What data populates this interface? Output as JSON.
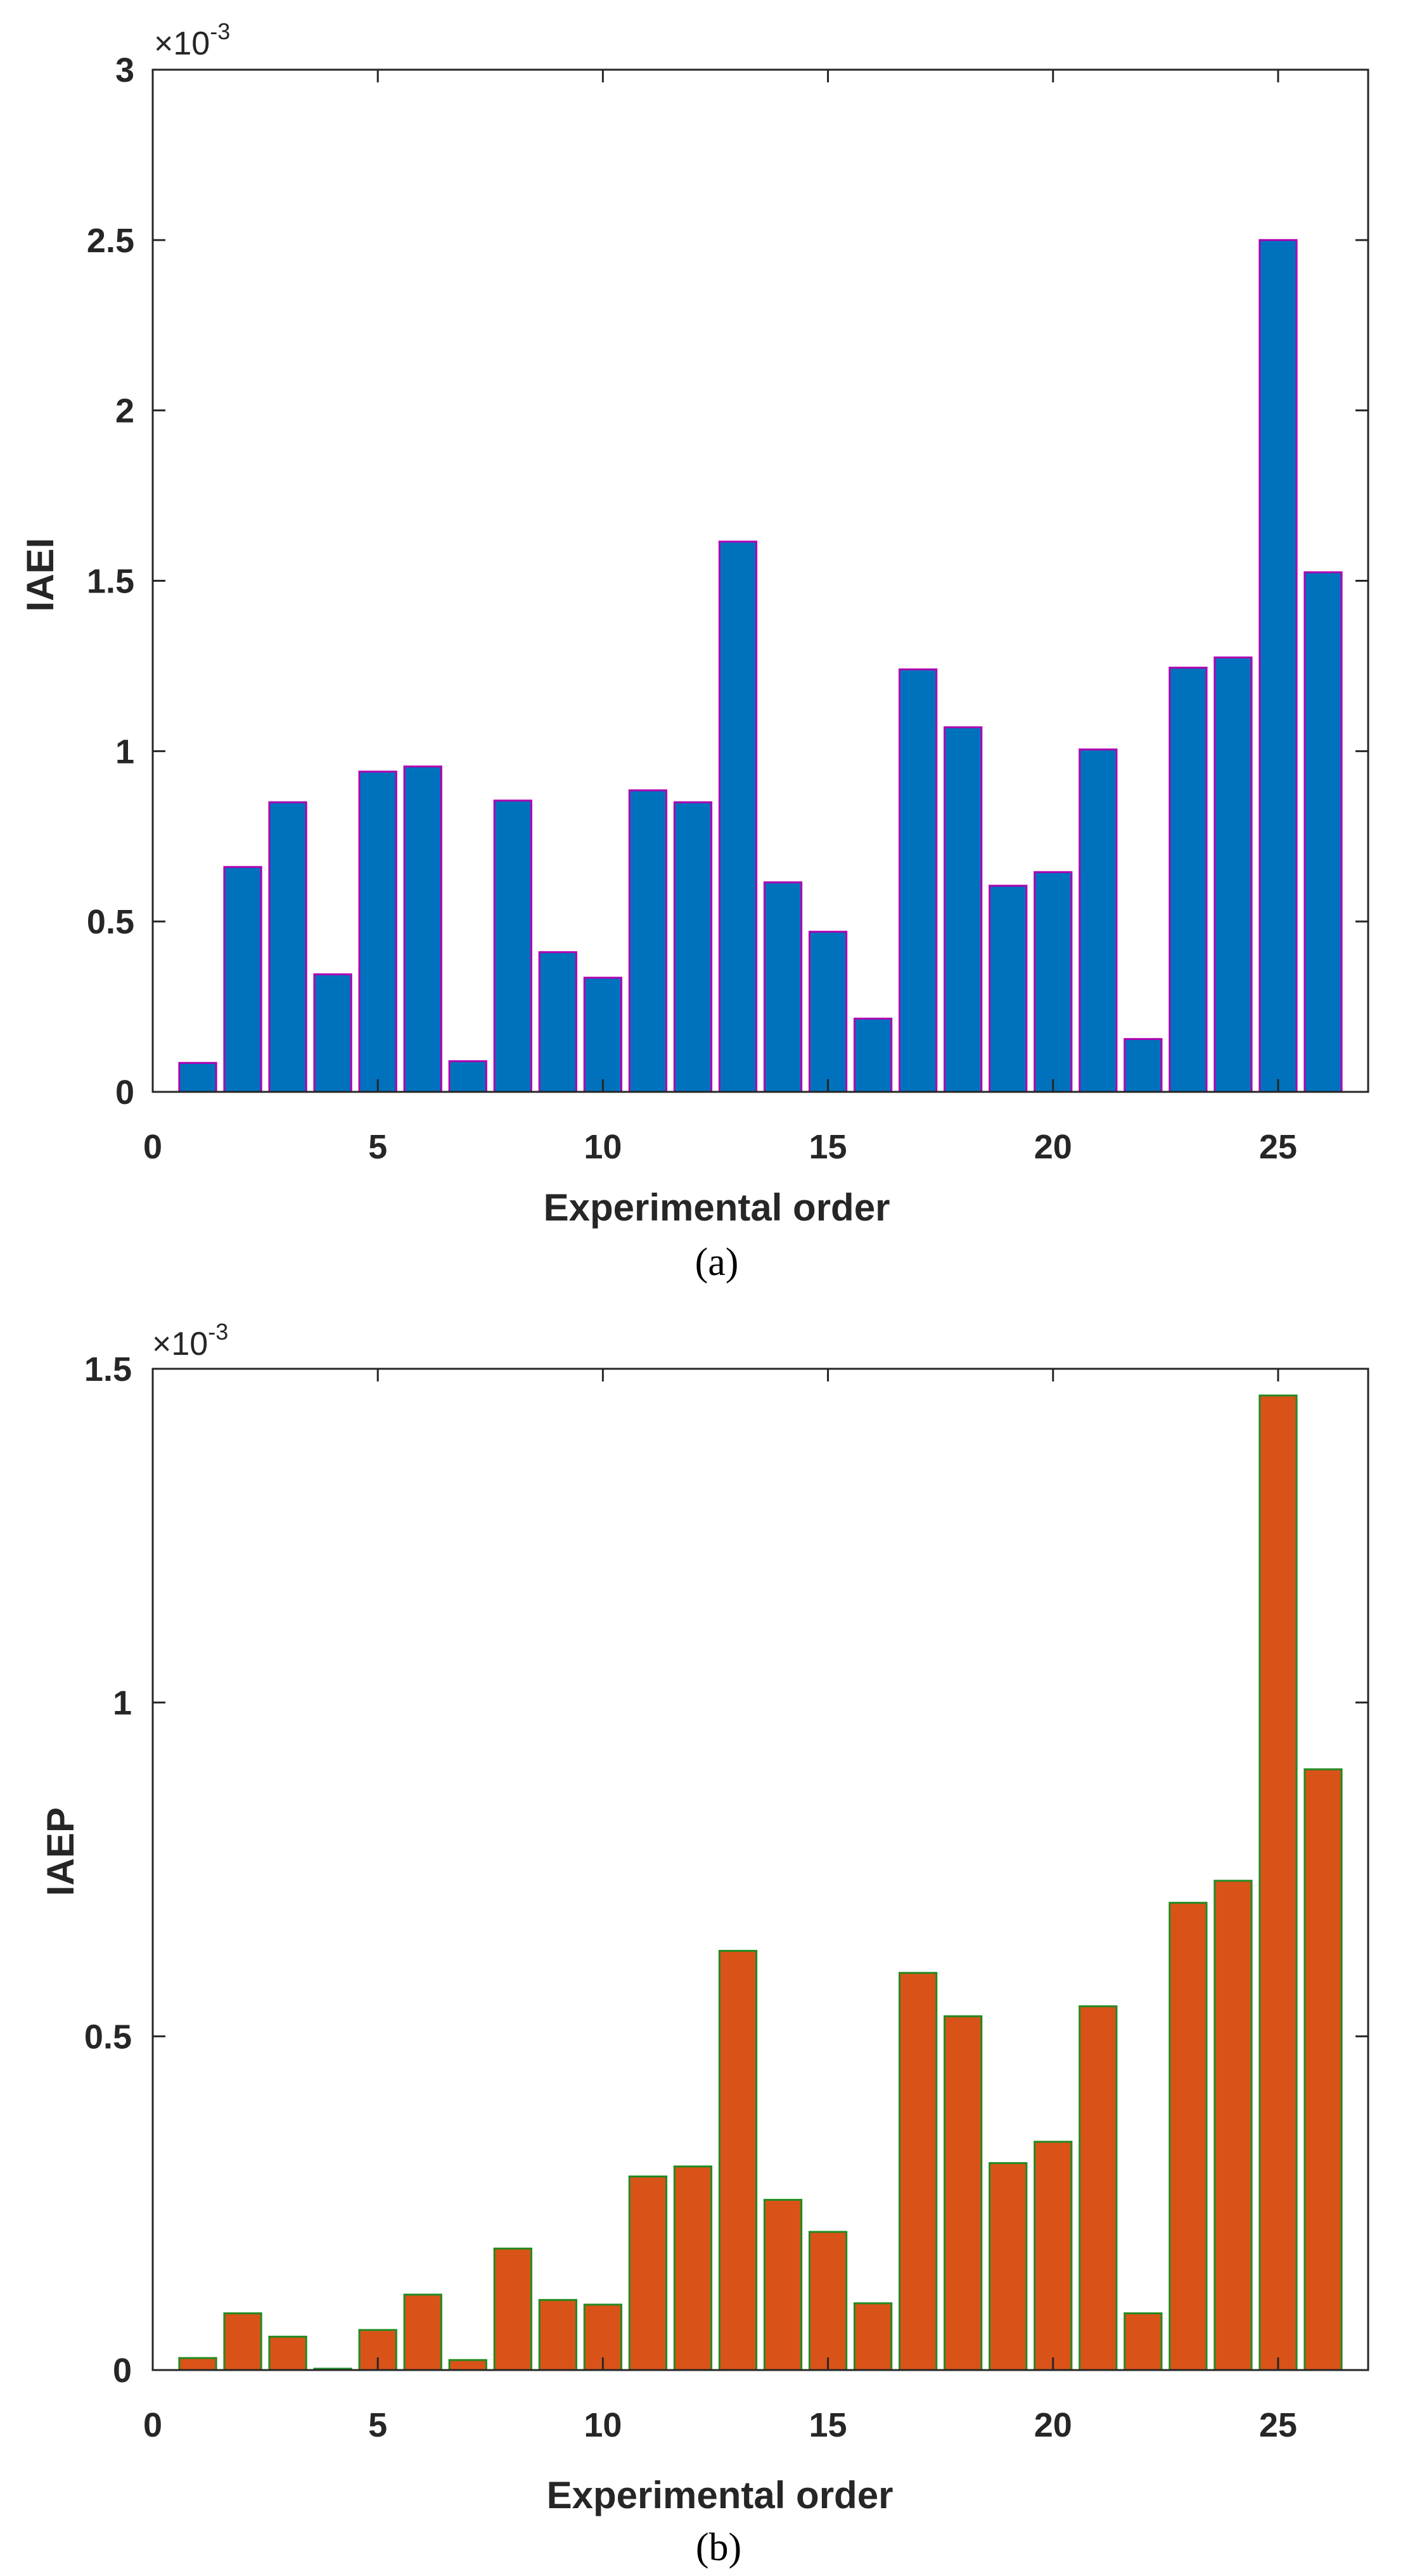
{
  "chart_data": [
    {
      "type": "bar",
      "panel": "a",
      "caption": "(a)",
      "xlabel": "Experimental order",
      "ylabel": "IAEI",
      "exponent_label": {
        "base": "×10",
        "power": "-3"
      },
      "xlim": [
        0,
        27
      ],
      "ylim": [
        0,
        3
      ],
      "xticks": [
        0,
        5,
        10,
        15,
        20,
        25
      ],
      "xtick_labels": [
        "0",
        "5",
        "10",
        "15",
        "20",
        "25"
      ],
      "yticks": [
        0,
        0.5,
        1,
        1.5,
        2,
        2.5,
        3
      ],
      "ytick_labels": [
        "0",
        "0.5",
        "1",
        "1.5",
        "2",
        "2.5",
        "3"
      ],
      "x": [
        1,
        2,
        3,
        4,
        5,
        6,
        7,
        8,
        9,
        10,
        11,
        12,
        13,
        14,
        15,
        16,
        17,
        18,
        19,
        20,
        21,
        22,
        23,
        24,
        25,
        26
      ],
      "values": [
        0.085,
        0.66,
        0.85,
        0.345,
        0.94,
        0.955,
        0.09,
        0.855,
        0.41,
        0.335,
        0.885,
        0.85,
        1.615,
        0.615,
        0.47,
        0.215,
        1.24,
        1.07,
        0.605,
        0.645,
        1.005,
        0.155,
        1.245,
        1.275,
        2.5,
        1.525
      ],
      "bar_color": "#0072BD",
      "edge_color": "#B000B0"
    },
    {
      "type": "bar",
      "panel": "b",
      "caption": "(b)",
      "xlabel": "Experimental order",
      "ylabel": "IAEP",
      "exponent_label": {
        "base": "×10",
        "power": "-3"
      },
      "xlim": [
        0,
        27
      ],
      "ylim": [
        0,
        1.5
      ],
      "xticks": [
        0,
        5,
        10,
        15,
        20,
        25
      ],
      "xtick_labels": [
        "0",
        "5",
        "10",
        "15",
        "20",
        "25"
      ],
      "yticks": [
        0,
        0.5,
        1,
        1.5
      ],
      "ytick_labels": [
        "0",
        "0.5",
        "1",
        "1.5"
      ],
      "x": [
        1,
        2,
        3,
        4,
        5,
        6,
        7,
        8,
        9,
        10,
        11,
        12,
        13,
        14,
        15,
        16,
        17,
        18,
        19,
        20,
        21,
        22,
        23,
        24,
        25,
        26
      ],
      "values": [
        0.018,
        0.085,
        0.05,
        0.002,
        0.06,
        0.113,
        0.015,
        0.182,
        0.105,
        0.098,
        0.29,
        0.305,
        0.628,
        0.255,
        0.207,
        0.1,
        0.595,
        0.53,
        0.31,
        0.342,
        0.545,
        0.085,
        0.7,
        0.733,
        1.46,
        0.9
      ],
      "bar_color": "#D95319",
      "edge_color": "#228B22"
    }
  ]
}
